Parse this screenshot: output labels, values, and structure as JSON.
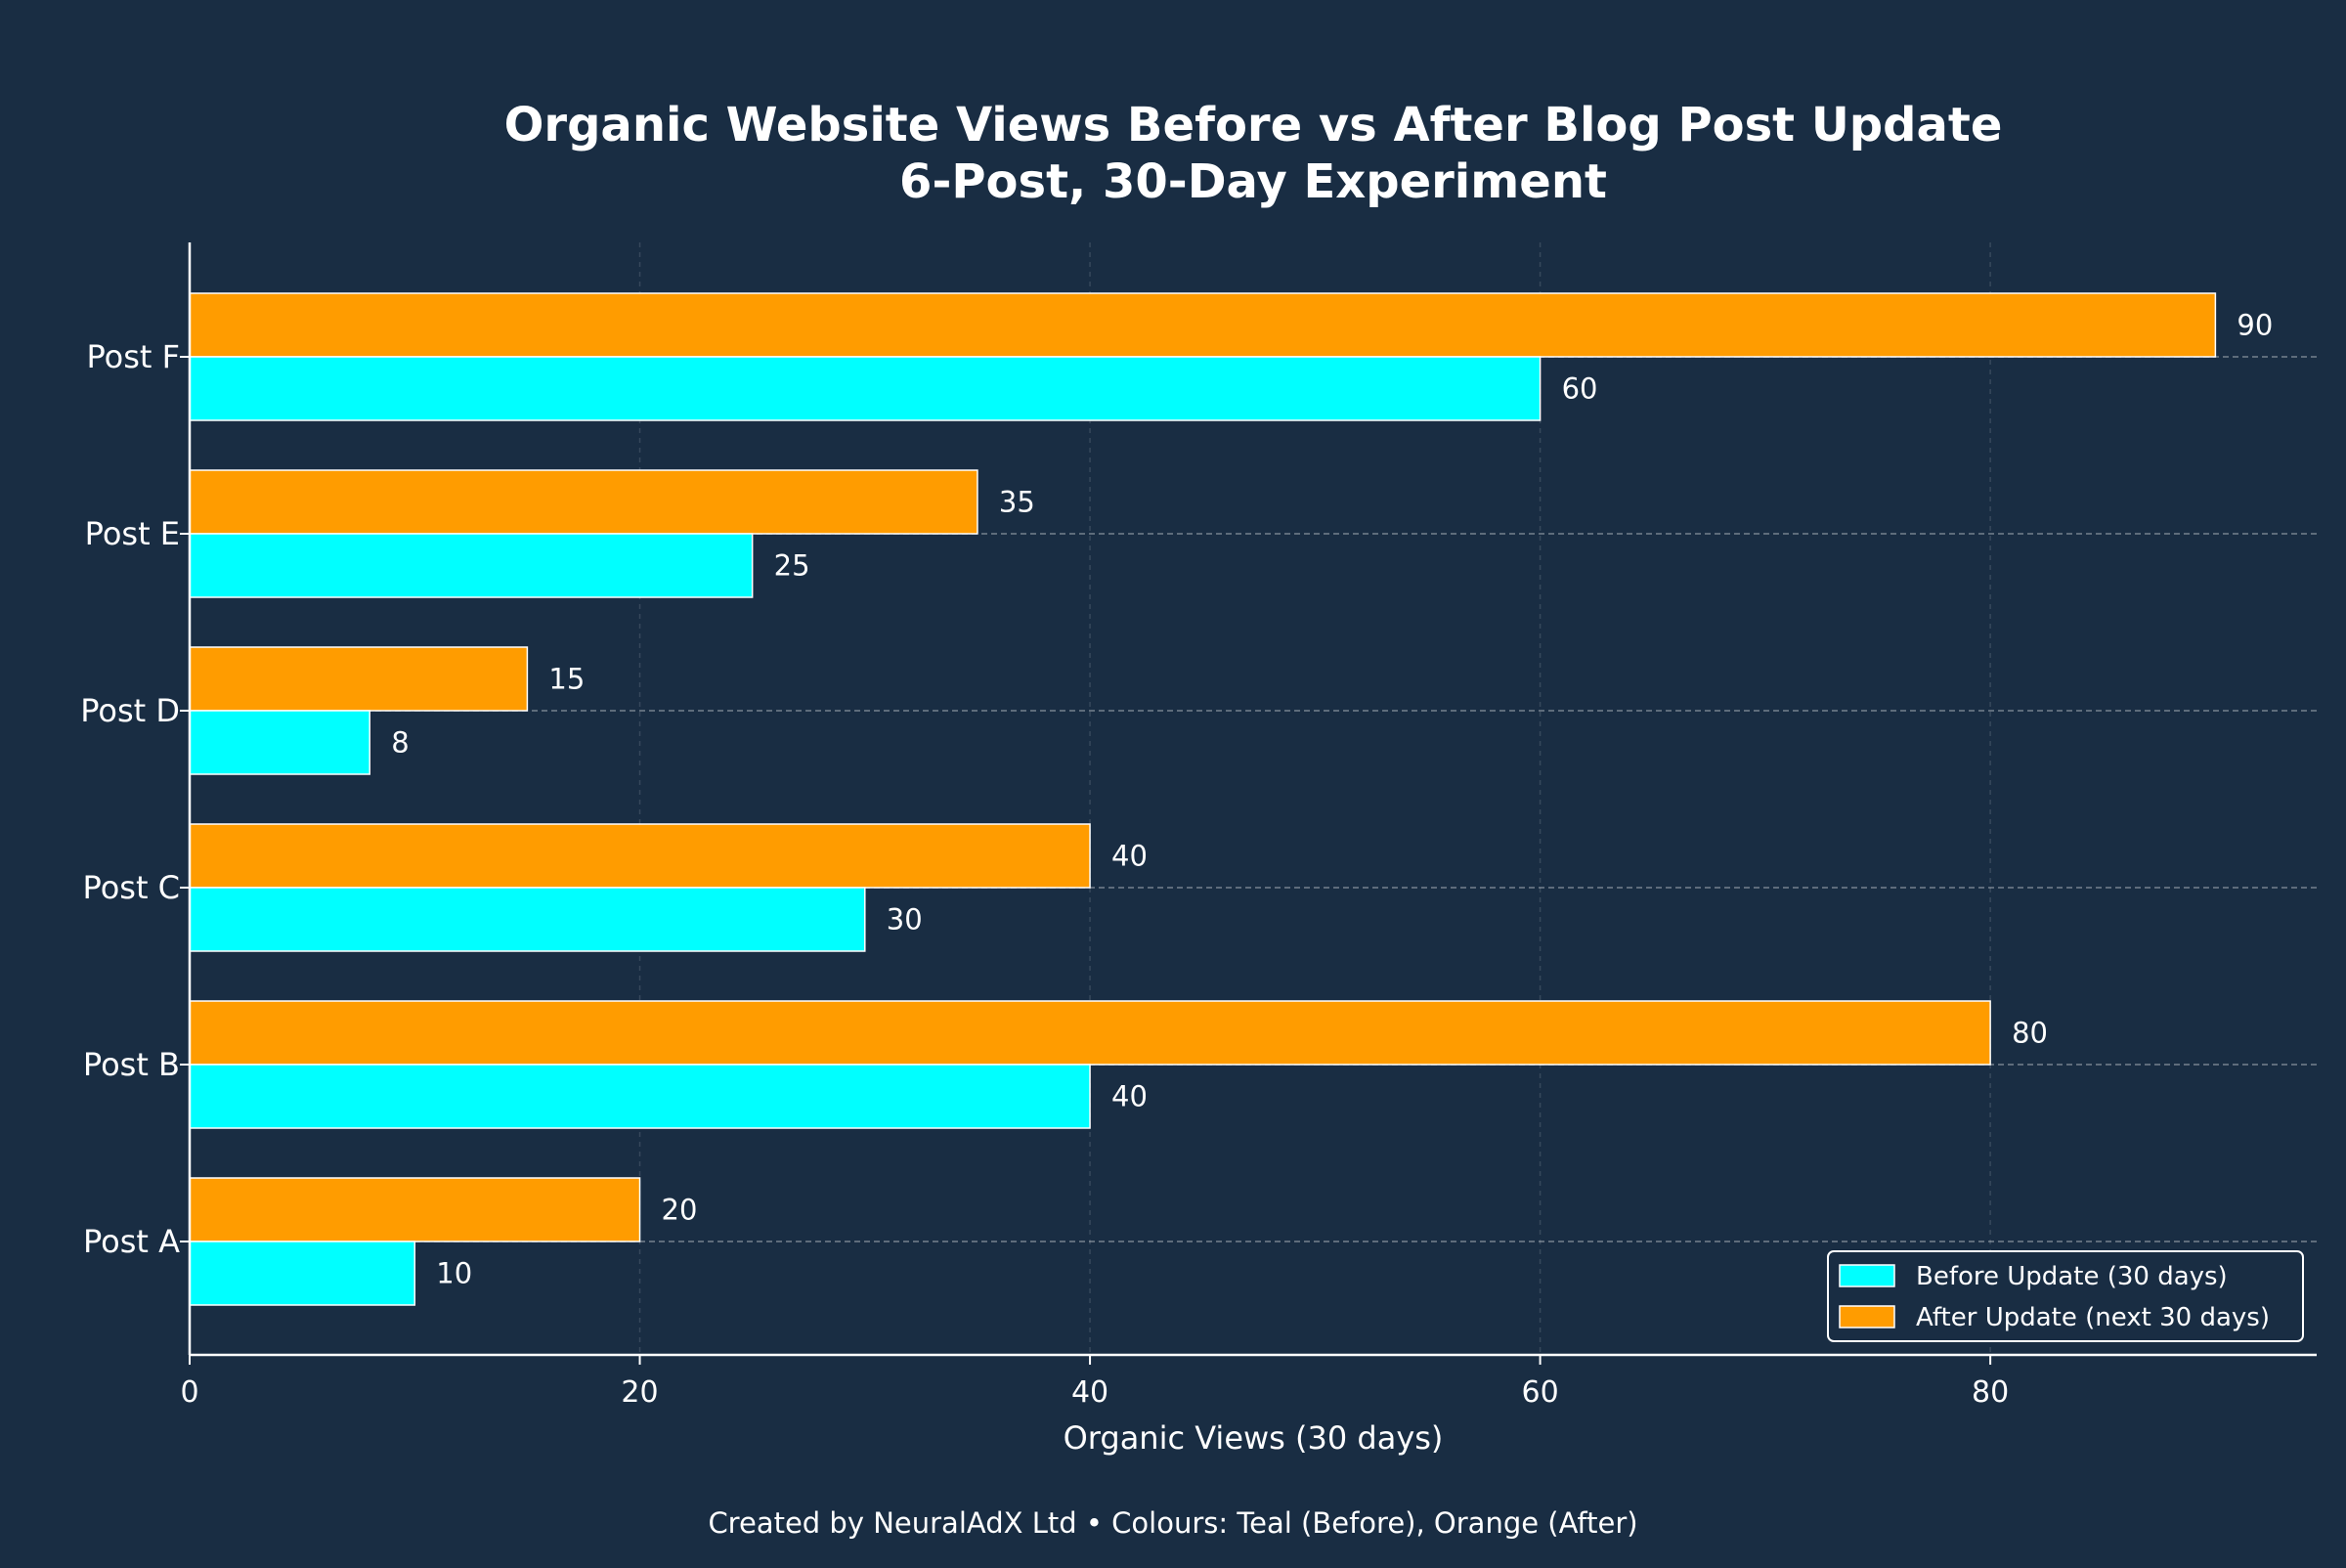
{
  "colors": {
    "background": "#192d43",
    "before": "#00ffff",
    "after": "#ff9c00",
    "text": "#ffffff"
  },
  "chart_data": {
    "type": "bar",
    "orientation": "horizontal",
    "title_lines": [
      "Organic Website Views Before vs After Blog Post Update",
      "6-Post, 30-Day Experiment"
    ],
    "xlabel": "Organic Views (30 days)",
    "ylabel": "",
    "xlim": [
      0,
      94.5
    ],
    "xticks": [
      0,
      20,
      40,
      60,
      80
    ],
    "grid": true,
    "legend_position": "bottom-right",
    "categories": [
      "Post A",
      "Post B",
      "Post C",
      "Post D",
      "Post E",
      "Post F"
    ],
    "series": [
      {
        "name": "Before Update (30 days)",
        "color": "#00ffff",
        "values": [
          10,
          40,
          30,
          8,
          25,
          60
        ]
      },
      {
        "name": "After Update (next 30 days)",
        "color": "#ff9c00",
        "values": [
          20,
          80,
          40,
          15,
          35,
          90
        ]
      }
    ],
    "caption": "Created by NeuralAdX Ltd • Colours: Teal (Before), Orange (After)"
  }
}
